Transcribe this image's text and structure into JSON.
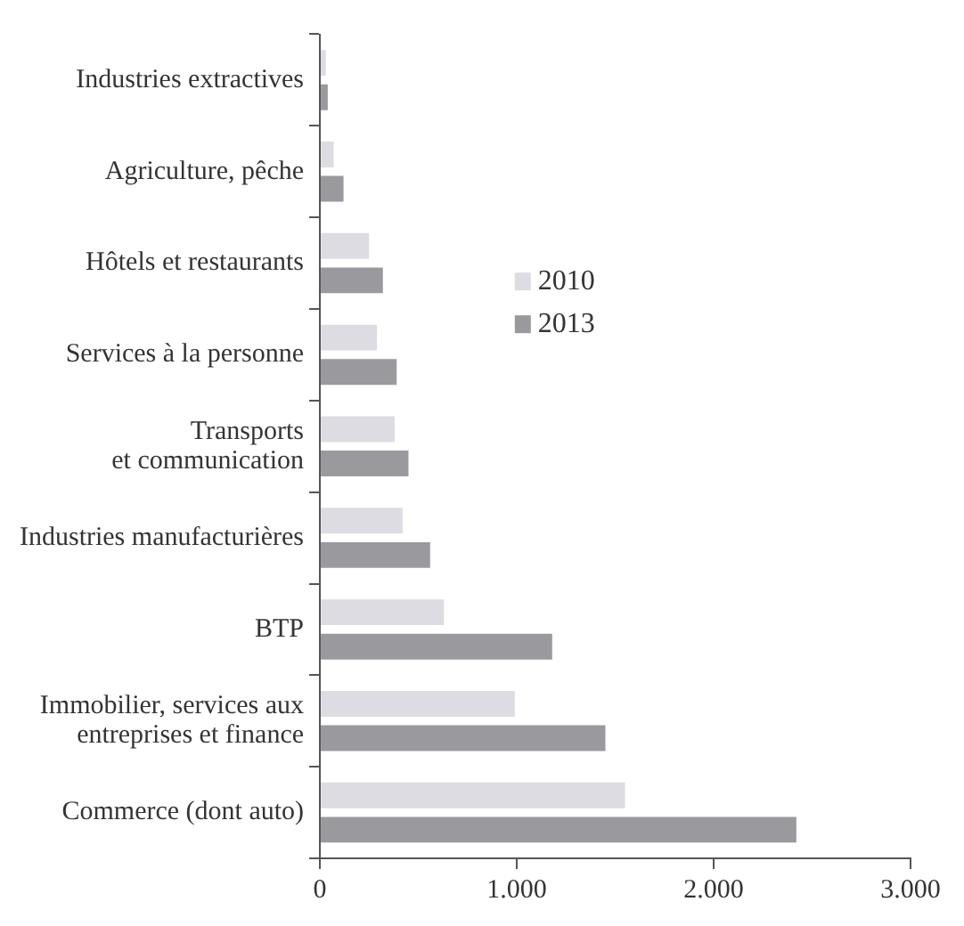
{
  "chart_data": {
    "type": "bar",
    "orientation": "horizontal",
    "categories": [
      "Industries extractives",
      "Agriculture, pêche",
      "Hôtels et restaurants",
      "Services à la personne",
      "Transports\net communication",
      "Industries manufacturières",
      "BTP",
      "Immobilier, services aux\nentreprises et finance",
      "Commerce (dont auto)"
    ],
    "series": [
      {
        "name": "2010",
        "color": "#dcdce2",
        "values": [
          30,
          70,
          250,
          290,
          380,
          420,
          630,
          990,
          1550
        ]
      },
      {
        "name": "2013",
        "color": "#9a9a9e",
        "values": [
          40,
          120,
          320,
          390,
          450,
          560,
          1180,
          1450,
          2420
        ]
      }
    ],
    "xlim": [
      0,
      3000
    ],
    "xticks": [
      0,
      {
        "value": 1000,
        "label": "1.000"
      },
      {
        "value": 2000,
        "label": "2.000"
      },
      {
        "value": 3000,
        "label": "3.000"
      }
    ],
    "grid": false,
    "legend": "top left"
  }
}
